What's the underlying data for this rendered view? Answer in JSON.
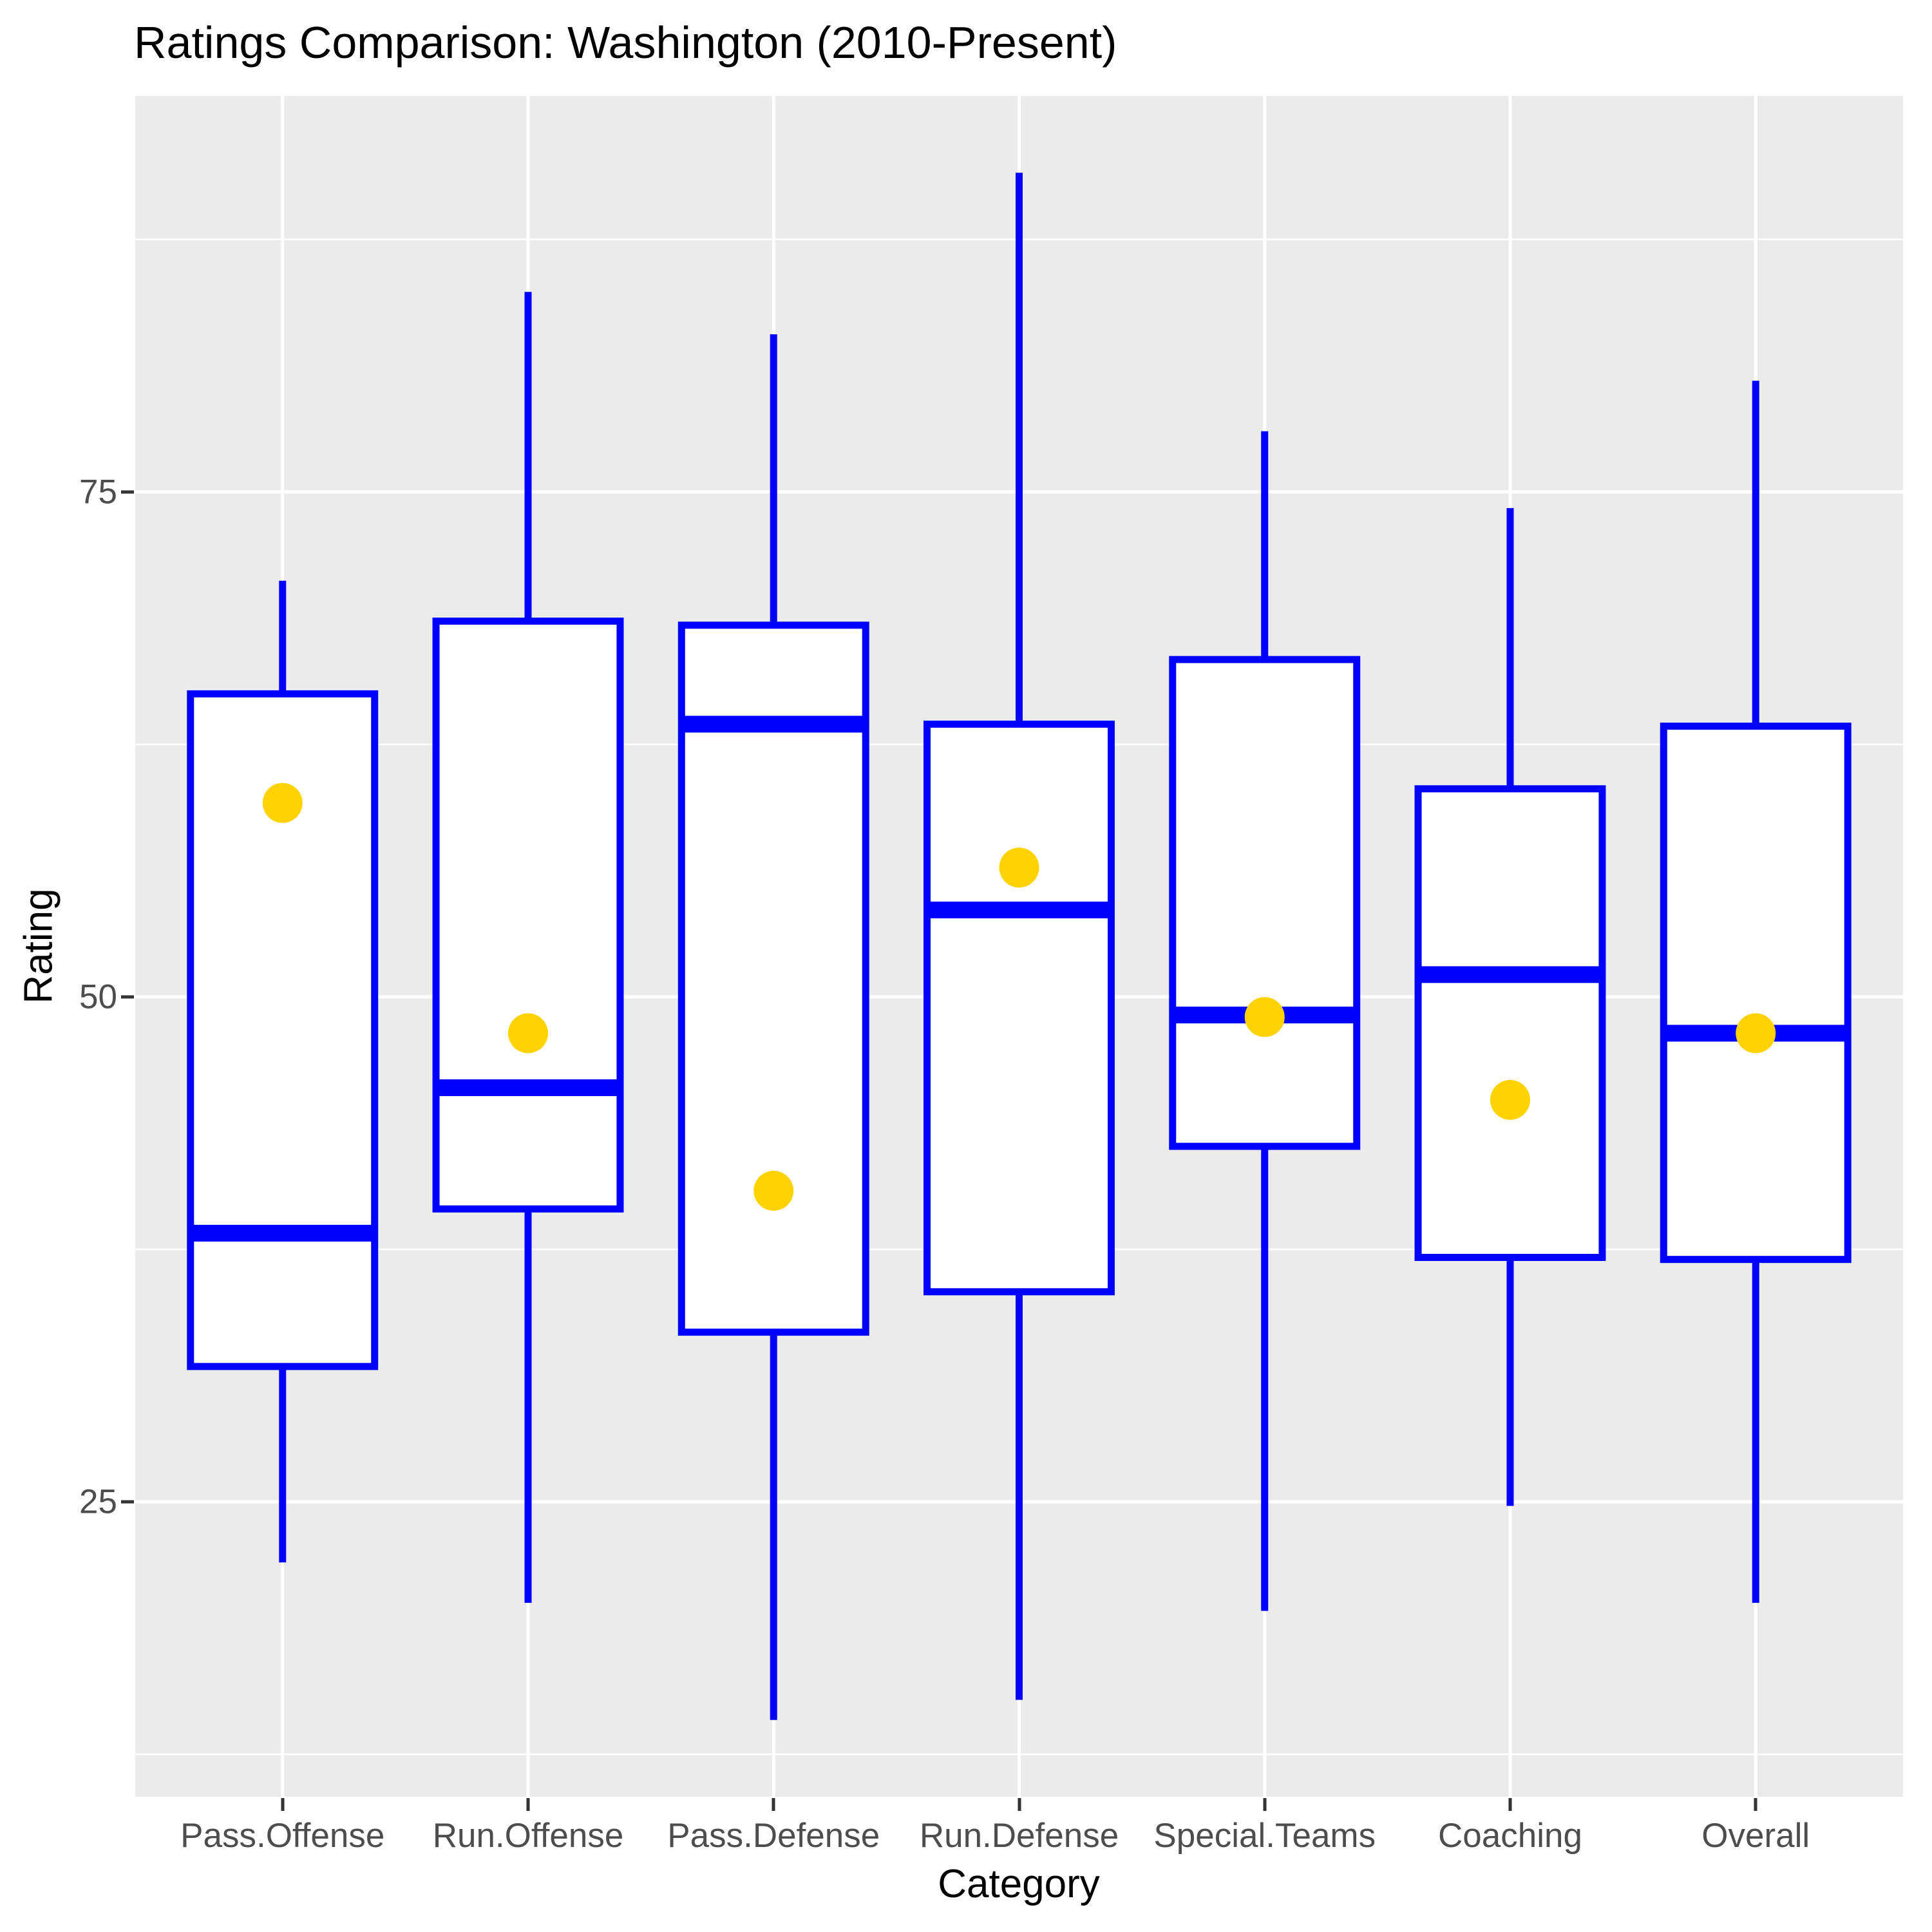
{
  "title": "Ratings Comparison: Washington (2010-Present)",
  "y_axis": {
    "label": "Rating",
    "tick_labels": [
      "75",
      "50",
      "25"
    ],
    "tick_values": [
      75,
      50,
      25
    ]
  },
  "x_axis": {
    "label": "Category"
  },
  "chart_data": {
    "type": "boxplot",
    "title": "Ratings Comparison: Washington (2010-Present)",
    "xlabel": "Category",
    "ylabel": "Rating",
    "ylim": [
      10.4,
      94.6
    ],
    "grid": "on",
    "legend": "none",
    "y_major_gridlines": [
      25,
      50,
      75
    ],
    "y_minor_gridlines": [
      12.5,
      37.5,
      62.5,
      87.5
    ],
    "categories": [
      "Pass.Offense",
      "Run.Offense",
      "Pass.Defense",
      "Run.Defense",
      "Special.Teams",
      "Coaching",
      "Overall"
    ],
    "series": [
      {
        "category": "Pass.Offense",
        "whisker_low": 22.0,
        "q1": 31.7,
        "median": 38.3,
        "q3": 65.0,
        "whisker_high": 70.6,
        "point": 59.6
      },
      {
        "category": "Run.Offense",
        "whisker_low": 20.0,
        "q1": 39.5,
        "median": 45.5,
        "q3": 68.6,
        "whisker_high": 84.9,
        "point": 48.2
      },
      {
        "category": "Pass.Defense",
        "whisker_low": 14.2,
        "q1": 33.4,
        "median": 63.5,
        "q3": 68.4,
        "whisker_high": 82.8,
        "point": 40.4
      },
      {
        "category": "Run.Defense",
        "whisker_low": 15.2,
        "q1": 35.4,
        "median": 54.3,
        "q3": 63.5,
        "whisker_high": 90.8,
        "point": 56.4
      },
      {
        "category": "Special.Teams",
        "whisker_low": 19.6,
        "q1": 42.6,
        "median": 49.1,
        "q3": 66.7,
        "whisker_high": 78.0,
        "point": 49.0
      },
      {
        "category": "Coaching",
        "whisker_low": 24.8,
        "q1": 37.1,
        "median": 51.1,
        "q3": 60.3,
        "whisker_high": 74.2,
        "point": 44.9
      },
      {
        "category": "Overall",
        "whisker_low": 20.0,
        "q1": 37.0,
        "median": 48.2,
        "q3": 63.4,
        "whisker_high": 80.5,
        "point": 48.2
      }
    ],
    "style": {
      "box_border_color": "#0000FF",
      "box_fill_color": "#FFFFFF",
      "whisker_color": "#0000FF",
      "median_color": "#0000FF",
      "point_color": "#FFD200",
      "panel_background": "#EBEBEB",
      "gridline_color": "#FFFFFF",
      "tick_label_color": "#4D4D4D",
      "tick_mark_color": "#333333",
      "text_color": "#000000"
    }
  }
}
